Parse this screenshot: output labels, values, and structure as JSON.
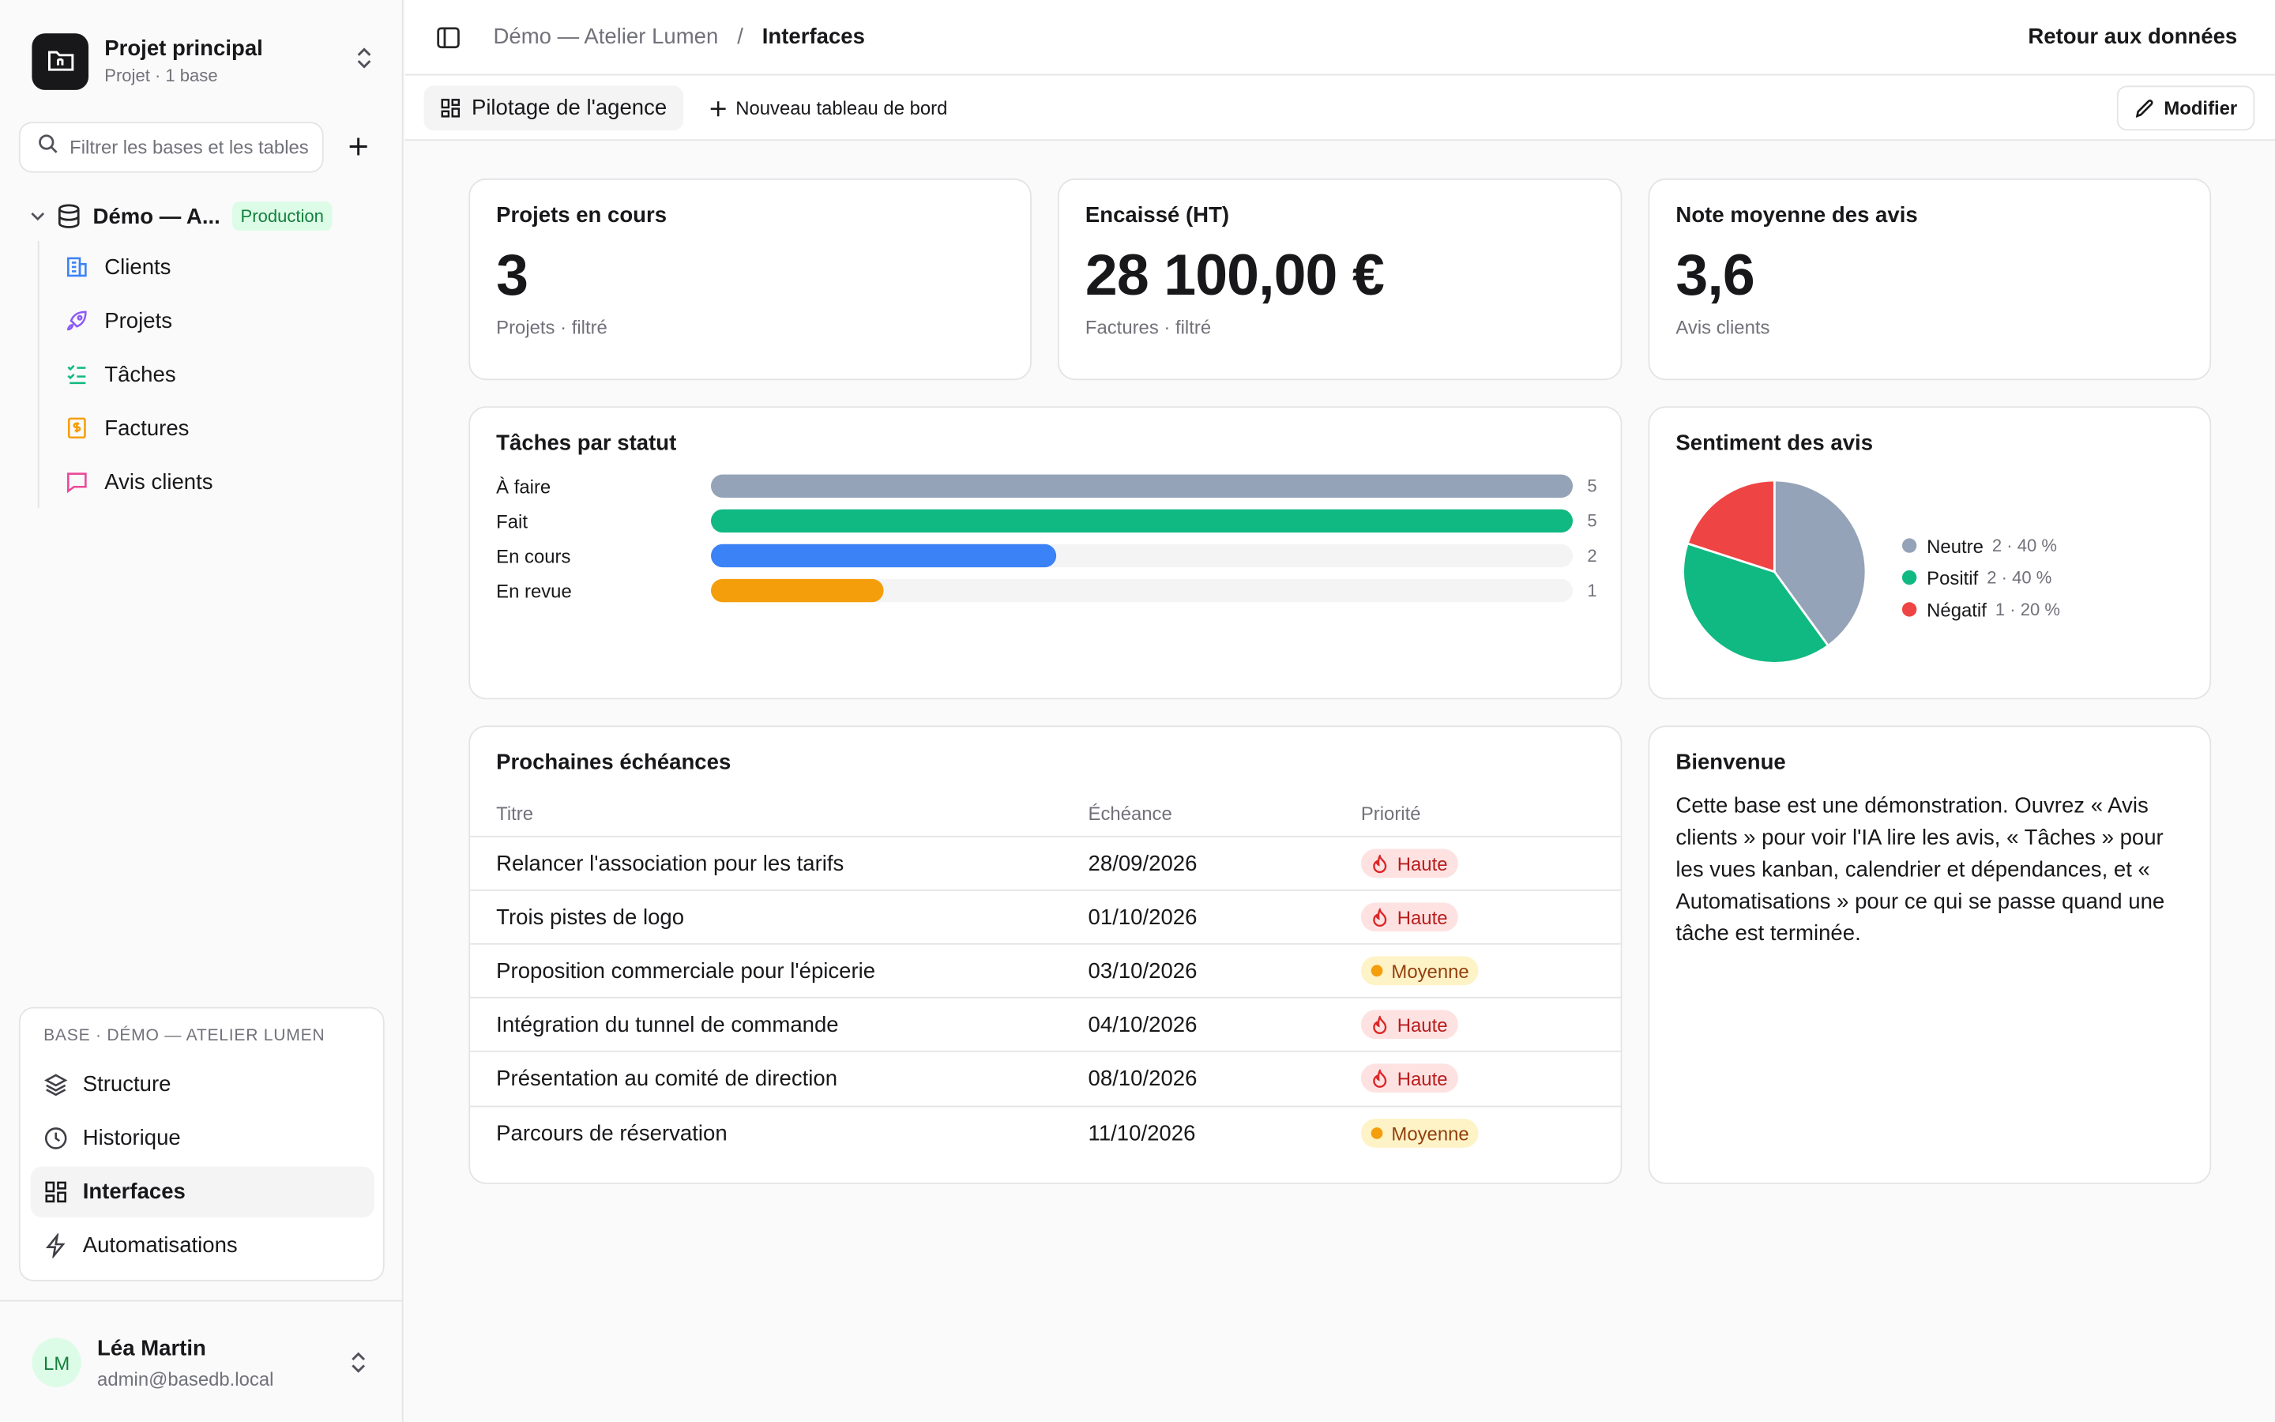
{
  "project": {
    "name": "Projet principal",
    "subtitle": "Projet · 1 base"
  },
  "sidebar": {
    "filter_placeholder": "Filtrer les bases et les tables",
    "base": {
      "name": "Démo — A...",
      "badge": "Production"
    },
    "tables": [
      {
        "label": "Clients",
        "icon": "building-icon",
        "color": "#3b82f6"
      },
      {
        "label": "Projets",
        "icon": "rocket-icon",
        "color": "#8b5cf6"
      },
      {
        "label": "Tâches",
        "icon": "checklist-icon",
        "color": "#10b981"
      },
      {
        "label": "Factures",
        "icon": "invoice-icon",
        "color": "#f59e0b"
      },
      {
        "label": "Avis clients",
        "icon": "message-icon",
        "color": "#ec4899"
      }
    ],
    "panel": {
      "heading": "Base · Démo — Atelier Lumen",
      "items": [
        {
          "label": "Structure",
          "icon": "layers-icon"
        },
        {
          "label": "Historique",
          "icon": "clock-icon"
        },
        {
          "label": "Interfaces",
          "icon": "grid-icon",
          "active": true
        },
        {
          "label": "Automatisations",
          "icon": "bolt-icon"
        }
      ]
    },
    "user": {
      "initials": "LM",
      "name": "Léa Martin",
      "email": "admin@basedb.local"
    }
  },
  "topbar": {
    "breadcrumb": [
      "Démo — Atelier Lumen",
      "/",
      "Interfaces"
    ],
    "back_link": "Retour aux données"
  },
  "tabbar": {
    "active_tab": "Pilotage de l'agence",
    "new_dashboard": "Nouveau tableau de bord",
    "edit_button": "Modifier"
  },
  "kpis": [
    {
      "title": "Projets en cours",
      "value": "3",
      "sub": "Projets · filtré"
    },
    {
      "title": "Encaissé (HT)",
      "value": "28 100,00 €",
      "sub": "Factures · filtré"
    },
    {
      "title": "Note moyenne des avis",
      "value": "3,6",
      "sub": "Avis clients"
    }
  ],
  "tasks_card": {
    "title": "Tâches par statut"
  },
  "sentiment_card": {
    "title": "Sentiment des avis"
  },
  "chart_data": [
    {
      "type": "bar",
      "title": "Tâches par statut",
      "orientation": "horizontal",
      "categories": [
        "À faire",
        "Fait",
        "En cours",
        "En revue"
      ],
      "values": [
        5,
        5,
        2,
        1
      ],
      "colors": [
        "#94a3b8",
        "#10b981",
        "#3b82f6",
        "#f59e0b"
      ],
      "xlim": [
        0,
        5
      ]
    },
    {
      "type": "pie",
      "title": "Sentiment des avis",
      "categories": [
        "Neutre",
        "Positif",
        "Négatif"
      ],
      "values": [
        2,
        2,
        1
      ],
      "labels": [
        "2 · 40 %",
        "2 · 40 %",
        "1 · 20 %"
      ],
      "colors": [
        "#94a3b8",
        "#10b981",
        "#ef4444"
      ],
      "legend": "right"
    }
  ],
  "deadlines": {
    "title": "Prochaines échéances",
    "columns": [
      "Titre",
      "Échéance",
      "Priorité"
    ],
    "rows": [
      {
        "title": "Relancer l'association pour les tarifs",
        "date": "28/09/2026",
        "priority": "Haute",
        "level": "high"
      },
      {
        "title": "Trois pistes de logo",
        "date": "01/10/2026",
        "priority": "Haute",
        "level": "high"
      },
      {
        "title": "Proposition commerciale pour l'épicerie",
        "date": "03/10/2026",
        "priority": "Moyenne",
        "level": "mid"
      },
      {
        "title": "Intégration du tunnel de commande",
        "date": "04/10/2026",
        "priority": "Haute",
        "level": "high"
      },
      {
        "title": "Présentation au comité de direction",
        "date": "08/10/2026",
        "priority": "Haute",
        "level": "high"
      },
      {
        "title": "Parcours de réservation",
        "date": "11/10/2026",
        "priority": "Moyenne",
        "level": "mid"
      }
    ]
  },
  "welcome": {
    "title": "Bienvenue",
    "text": "Cette base est une démonstration. Ouvrez « Avis clients » pour voir l'IA lire les avis, « Tâches » pour les vues kanban, calendrier et dépendances, et « Automatisations » pour ce qui se passe quand une tâche est terminée."
  }
}
